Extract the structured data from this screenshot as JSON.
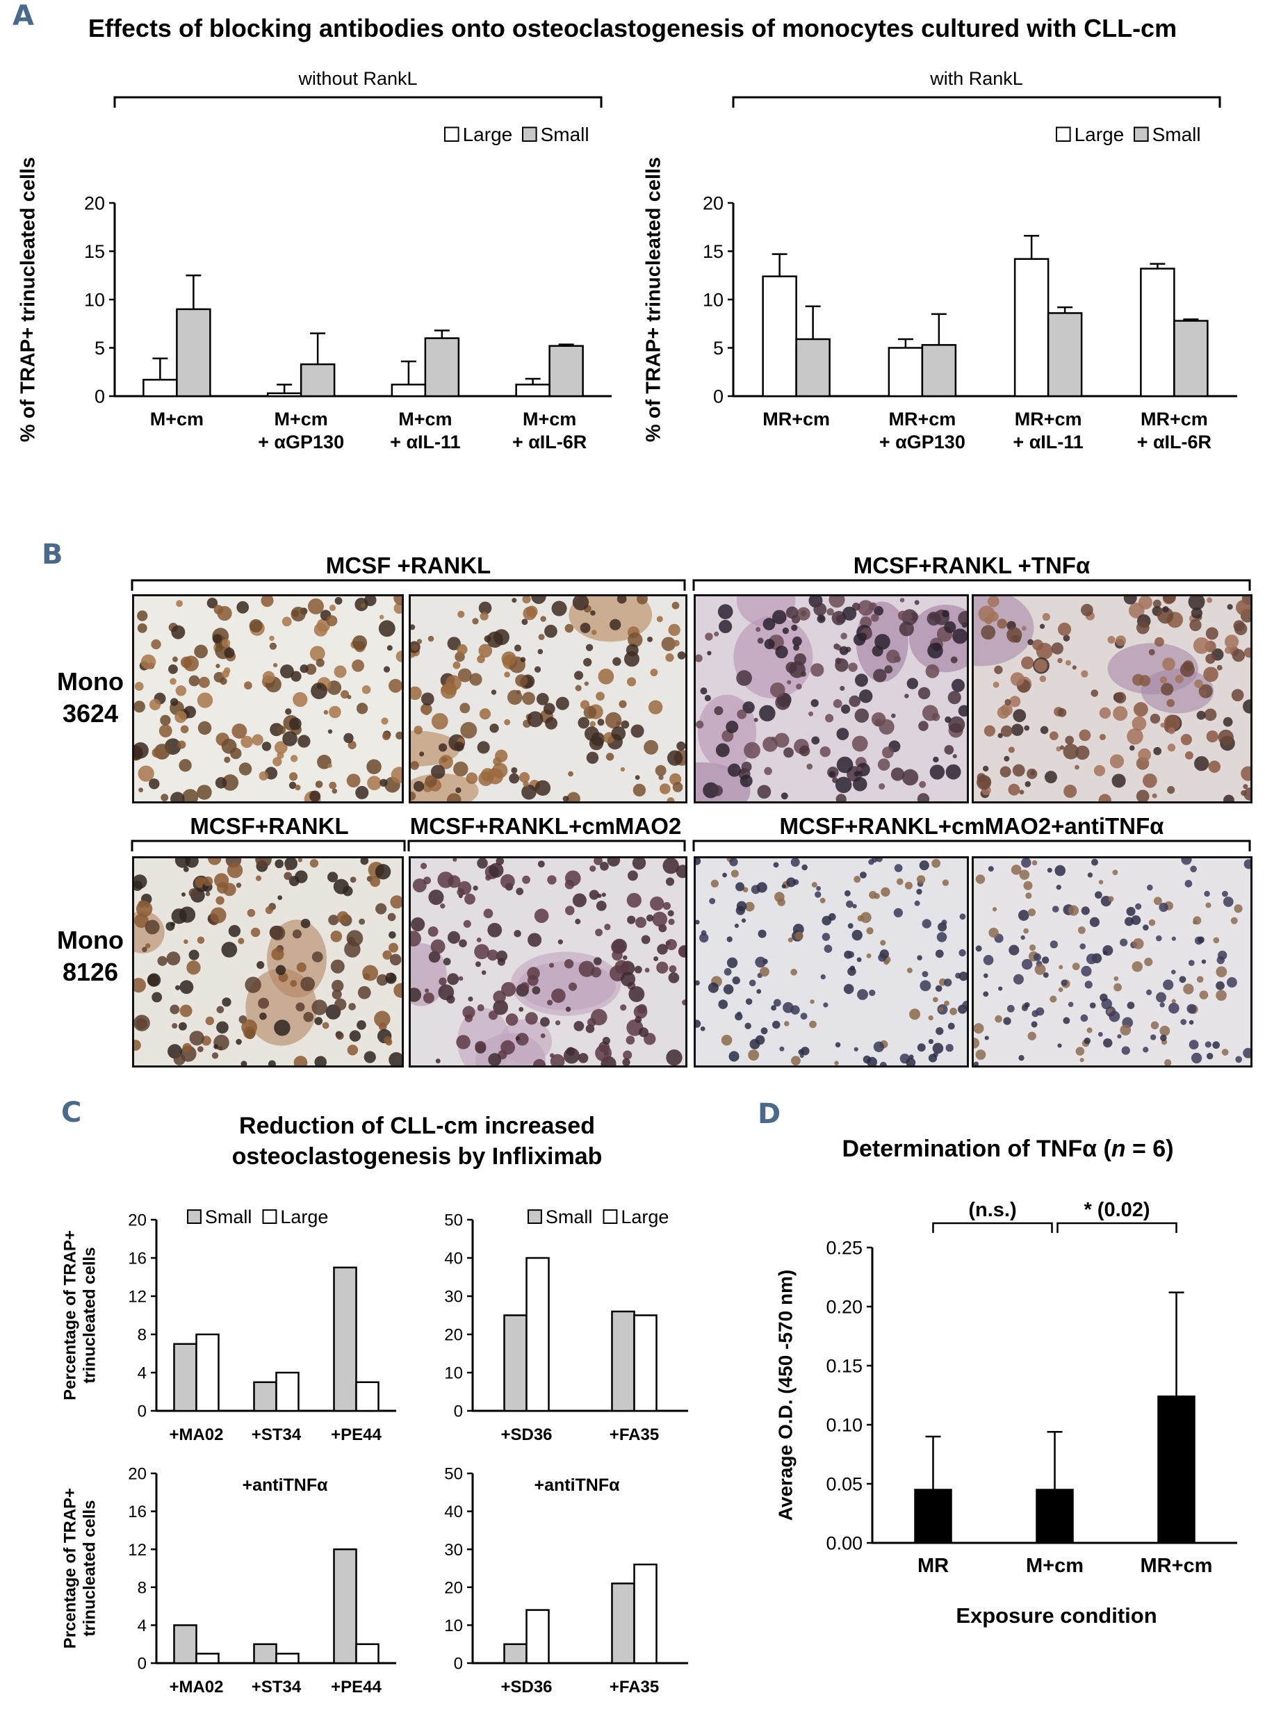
{
  "panel_letters": {
    "a": "A",
    "b": "B",
    "c": "C",
    "d": "D"
  },
  "panel_a": {
    "title": "Effects of blocking antibodies onto osteoclastogenesis of monocytes cultured with CLL-cm",
    "bracket_left": "without RankL",
    "bracket_right": "with RankL"
  },
  "panel_b": {
    "top_groups": [
      "MCSF +RANKL",
      "MCSF+RANKL +TNFα"
    ],
    "bottom_groups": [
      "MCSF+RANKL",
      "MCSF+RANKL+cmMAO2",
      "MCSF+RANKL+cmMAO2+antiTNFα"
    ],
    "row1_label": "Mono\n3624",
    "row2_label": "Mono\n8126"
  },
  "panel_c": {
    "title_line1": "Reduction of CLL-cm increased",
    "title_line2": "osteoclastogenesis by Infliximab"
  },
  "panel_d": {
    "title_prefix": "Determination of TNFα (",
    "title_n": "n",
    "title_suffix": " = 6)"
  },
  "colors": {
    "open": "#ffffff",
    "gray": "#c8c8c8",
    "black": "#000000",
    "letter": "#4a6a8c"
  },
  "chart_data": [
    {
      "id": "A-left",
      "type": "bar",
      "ylabel": "% of TRAP+ trinucleated  cells",
      "ylim": [
        0,
        20
      ],
      "yticks": [
        0,
        5,
        10,
        15,
        20
      ],
      "categories": [
        [
          "M+cm"
        ],
        [
          "M+cm",
          "+ αGP130"
        ],
        [
          "M+cm",
          "+ αIL-11"
        ],
        [
          "M+cm",
          "+ αIL-6R"
        ]
      ],
      "series": [
        {
          "name": "Large",
          "color": "#ffffff",
          "values": [
            1.7,
            0.3,
            1.2,
            1.2
          ],
          "errors": [
            2.2,
            0.9,
            2.4,
            0.6
          ]
        },
        {
          "name": "Small",
          "color": "#c8c8c8",
          "values": [
            9.0,
            3.3,
            6.0,
            5.2
          ],
          "errors": [
            3.5,
            3.2,
            0.8,
            0.15
          ]
        }
      ],
      "legend": "top-right"
    },
    {
      "id": "A-right",
      "type": "bar",
      "ylabel": "% of TRAP+ trinucleated  cells",
      "ylim": [
        0,
        20
      ],
      "yticks": [
        0,
        5,
        10,
        15,
        20
      ],
      "categories": [
        [
          "MR+cm"
        ],
        [
          "MR+cm",
          "+ αGP130"
        ],
        [
          "MR+cm",
          "+ αIL-11"
        ],
        [
          "MR+cm",
          "+ αIL-6R"
        ]
      ],
      "series": [
        {
          "name": "Large",
          "color": "#ffffff",
          "values": [
            12.4,
            5.0,
            14.2,
            13.2
          ],
          "errors": [
            2.3,
            0.9,
            2.4,
            0.5
          ]
        },
        {
          "name": "Small",
          "color": "#c8c8c8",
          "values": [
            5.9,
            5.3,
            8.6,
            7.8
          ],
          "errors": [
            3.4,
            3.2,
            0.6,
            0.15
          ]
        }
      ],
      "legend": "top-right"
    },
    {
      "id": "C-top-left",
      "type": "bar",
      "ylabel": [
        "Percentage of TRAP+",
        "trinucleated cells"
      ],
      "ylim": [
        0,
        20
      ],
      "yticks": [
        0,
        4,
        8,
        12,
        16,
        20
      ],
      "categories": [
        [
          "+MA02"
        ],
        [
          "+ST34"
        ],
        [
          "+PE44"
        ]
      ],
      "series": [
        {
          "name": "Small",
          "color": "#c8c8c8",
          "values": [
            7,
            3,
            15
          ]
        },
        {
          "name": "Large",
          "color": "#ffffff",
          "values": [
            8,
            4,
            3
          ]
        }
      ],
      "legend": "top"
    },
    {
      "id": "C-top-right",
      "type": "bar",
      "ylim": [
        0,
        50
      ],
      "yticks": [
        0,
        10,
        20,
        30,
        40,
        50
      ],
      "categories": [
        [
          "+SD36"
        ],
        [
          "+FA35"
        ]
      ],
      "series": [
        {
          "name": "Small",
          "color": "#c8c8c8",
          "values": [
            25,
            26
          ]
        },
        {
          "name": "Large",
          "color": "#ffffff",
          "values": [
            40,
            25
          ]
        }
      ],
      "legend": "top"
    },
    {
      "id": "C-bottom-left",
      "type": "bar",
      "ylabel": [
        "Prcentage of TRAP+",
        "trinucleated cells"
      ],
      "annotation": "+antiTNFα",
      "ylim": [
        0,
        20
      ],
      "yticks": [
        0,
        4,
        8,
        12,
        16,
        20
      ],
      "categories": [
        [
          "+MA02"
        ],
        [
          "+ST34"
        ],
        [
          "+PE44"
        ]
      ],
      "series": [
        {
          "color": "#c8c8c8",
          "values": [
            4,
            2,
            12
          ]
        },
        {
          "color": "#ffffff",
          "values": [
            1,
            1,
            2
          ]
        }
      ]
    },
    {
      "id": "C-bottom-right",
      "type": "bar",
      "annotation": "+antiTNFα",
      "ylim": [
        0,
        50
      ],
      "yticks": [
        0,
        10,
        20,
        30,
        40,
        50
      ],
      "categories": [
        [
          "+SD36"
        ],
        [
          "+FA35"
        ]
      ],
      "series": [
        {
          "color": "#c8c8c8",
          "values": [
            5,
            21
          ]
        },
        {
          "color": "#ffffff",
          "values": [
            14,
            26
          ]
        }
      ]
    },
    {
      "id": "D",
      "type": "bar",
      "ylabel": "Average O.D. (450 -570 nm)",
      "xlabel": "Exposure condition",
      "ylim": [
        0,
        0.25
      ],
      "yticks": [
        "0.00",
        "0.05",
        "0.10",
        "0.15",
        "0.20",
        "0.25"
      ],
      "categories": [
        [
          "MR"
        ],
        [
          "M+cm"
        ],
        [
          "MR+cm"
        ]
      ],
      "series": [
        {
          "color": "#000000",
          "values": [
            0.045,
            0.045,
            0.124
          ],
          "errors": [
            0.045,
            0.049,
            0.088
          ]
        }
      ],
      "significance": [
        {
          "from": 0,
          "to": 1,
          "label": "(n.s.)"
        },
        {
          "from": 1,
          "to": 2,
          "label": "* (0.02)"
        }
      ]
    }
  ]
}
